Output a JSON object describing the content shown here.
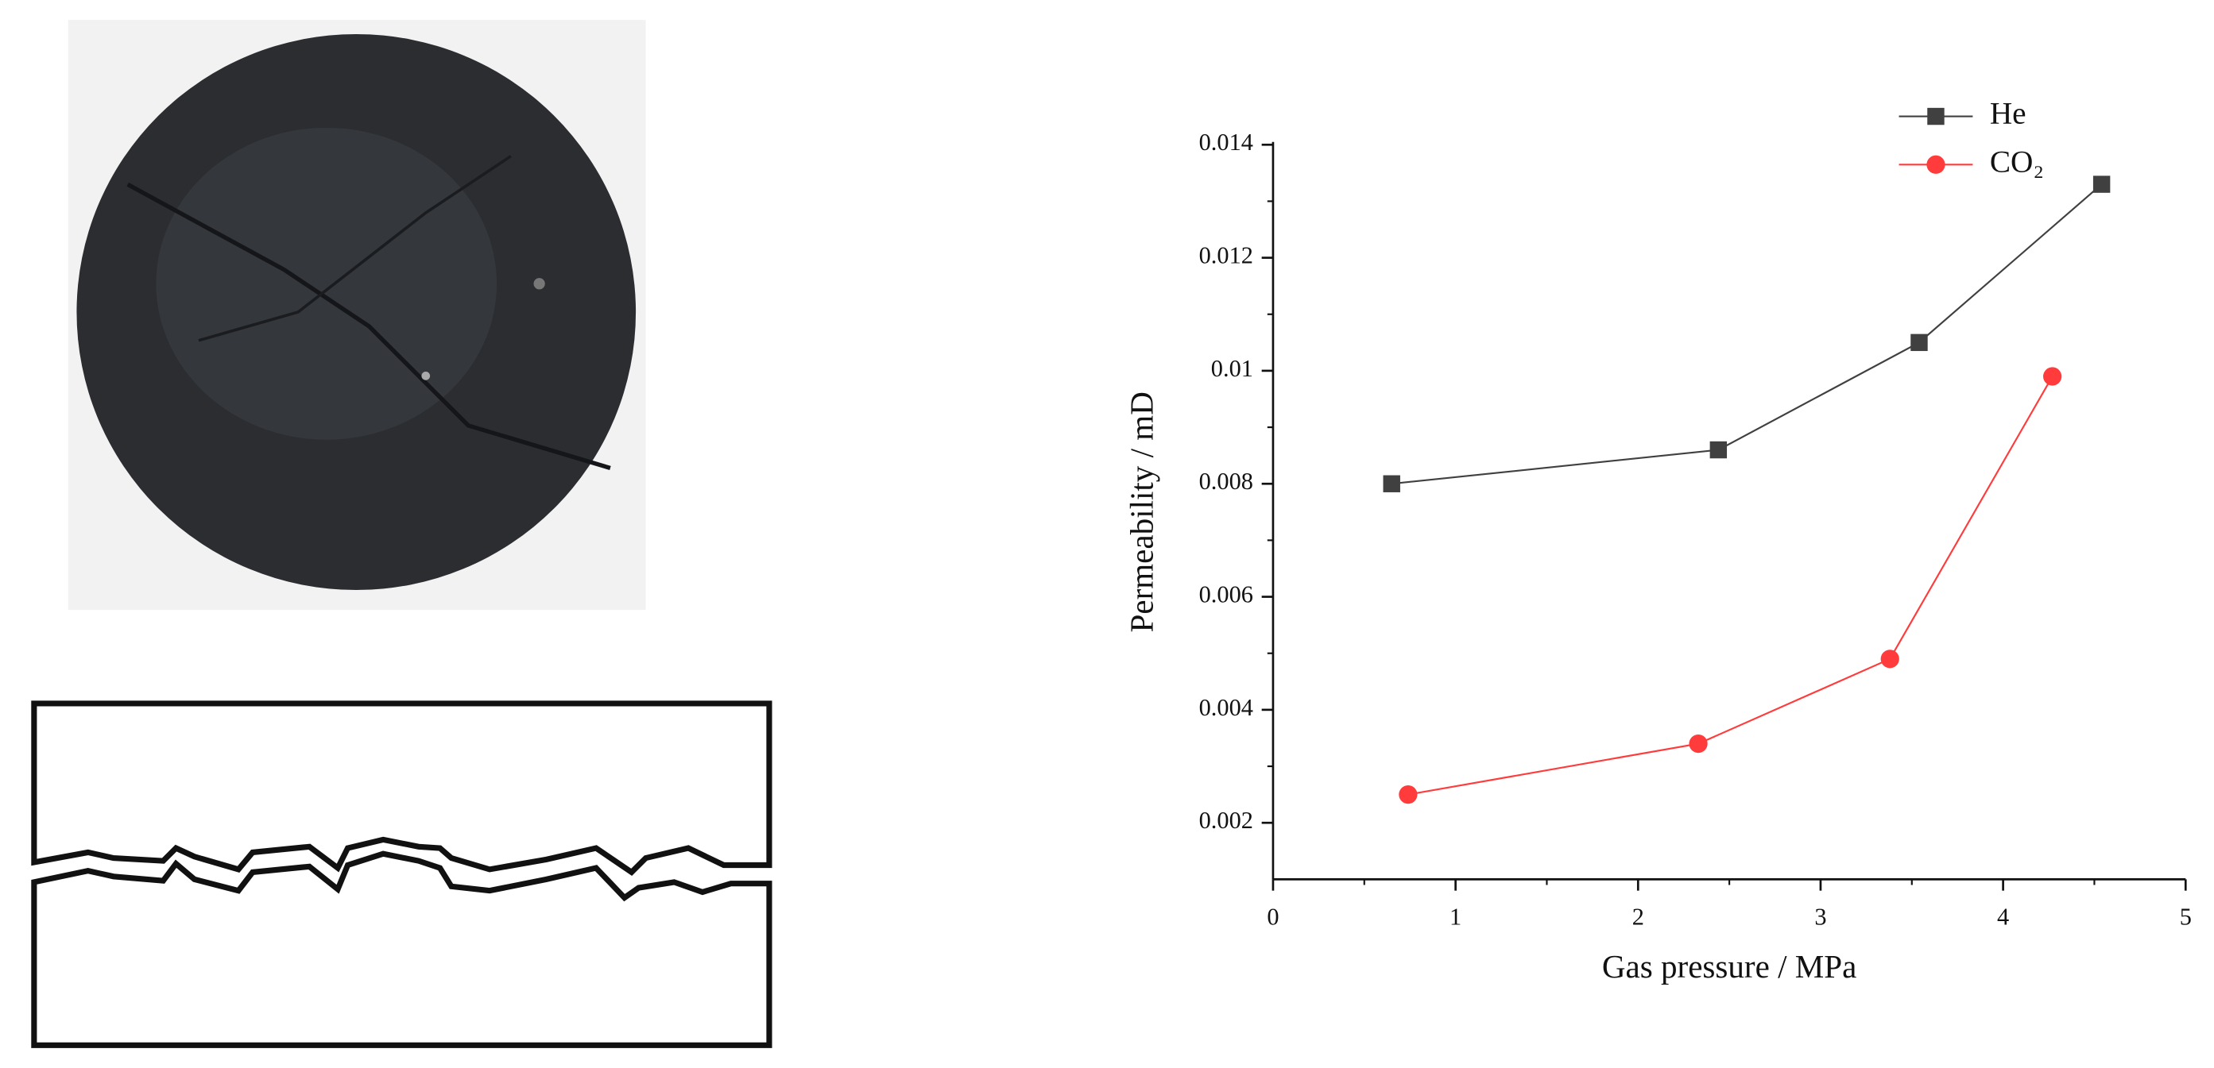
{
  "chart_data": {
    "type": "line",
    "xlabel": "Gas pressure / MPa",
    "ylabel": "Permeability / mD",
    "xlim": [
      0,
      5
    ],
    "xticks": [
      0,
      1,
      2,
      3,
      4,
      5
    ],
    "ylim": [
      0.001,
      0.014
    ],
    "yticks": [
      0.002,
      0.004,
      0.006,
      0.008,
      0.01,
      0.012,
      0.014
    ],
    "series": [
      {
        "name": "He",
        "color": "#404040",
        "x": [
          0.65,
          2.44,
          3.54,
          4.54
        ],
        "values": [
          0.008,
          0.0086,
          0.0105,
          0.0133
        ]
      },
      {
        "name": "CO₂",
        "color": "#ff3b3b",
        "x": [
          0.74,
          2.33,
          3.38,
          4.27
        ],
        "values": [
          0.0025,
          0.0034,
          0.0049,
          0.0099
        ]
      }
    ]
  }
}
